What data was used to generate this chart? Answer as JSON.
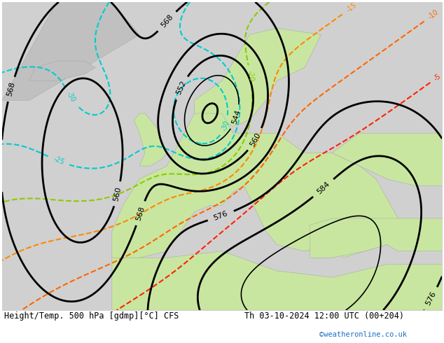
{
  "title_left": "Height/Temp. 500 hPa [gdmp][°C] CFS",
  "title_right": "Th 03-10-2024 12:00 UTC (00+204)",
  "credit": "©weatheronline.co.uk",
  "background_color": "#e8e8e8",
  "land_color_light": "#c8e6a0",
  "land_color_dark": "#a8d080",
  "sea_color": "#d8d8d8",
  "fig_width": 6.34,
  "fig_height": 4.9,
  "dpi": 100
}
